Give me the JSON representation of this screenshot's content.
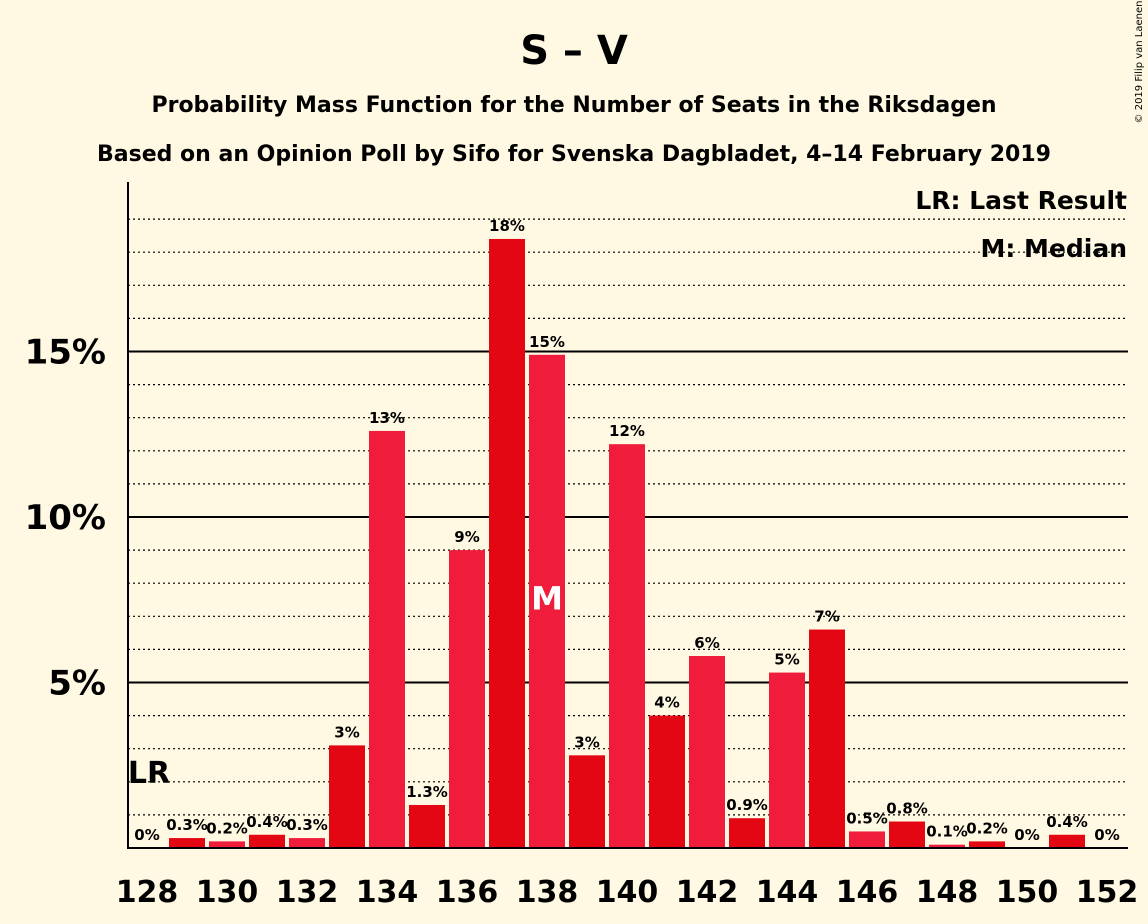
{
  "chart_data": {
    "type": "bar",
    "title": "S – V",
    "subtitle_1": "Probability Mass Function for the Number of Seats in the Riksdagen",
    "subtitle_2": "Based on an Opinion Poll by Sifo for Svenska Dagbladet, 4–14 February 2019",
    "copyright": "© 2019 Filip van Laenen",
    "legend": {
      "placement": "top-right",
      "last_result": "LR: Last Result",
      "median": "M: Median"
    },
    "markers": {
      "last_result_label": "LR",
      "last_result_seat": 128,
      "median_label": "M",
      "median_seat": 138
    },
    "x": [
      128,
      129,
      130,
      131,
      132,
      133,
      134,
      135,
      136,
      137,
      138,
      139,
      140,
      141,
      142,
      143,
      144,
      145,
      146,
      147,
      148,
      149,
      150,
      151,
      152
    ],
    "values": [
      0,
      0.3,
      0.2,
      0.4,
      0.3,
      3.1,
      12.6,
      1.3,
      9.0,
      18.4,
      14.9,
      2.8,
      12.2,
      4.0,
      5.8,
      0.9,
      5.3,
      6.6,
      0.5,
      0.8,
      0.1,
      0.2,
      0,
      0.4,
      0
    ],
    "data_labels": [
      "0%",
      "0.3%",
      "0.2%",
      "0.4%",
      "0.3%",
      "3%",
      "13%",
      "1.3%",
      "9%",
      "18%",
      "15%",
      "3%",
      "12%",
      "4%",
      "6%",
      "0.9%",
      "5%",
      "7%",
      "0.5%",
      "0.8%",
      "0.1%",
      "0.2%",
      "0%",
      "0.4%",
      "0%"
    ],
    "x_tick_labels": [
      "128",
      "130",
      "132",
      "134",
      "136",
      "138",
      "140",
      "142",
      "144",
      "146",
      "148",
      "150",
      "152"
    ],
    "y_tick_labels": [
      "5%",
      "10%",
      "15%"
    ],
    "y_ticks": [
      5,
      10,
      15
    ],
    "ylim": [
      0,
      20
    ],
    "grid": "solid major lines at 5% steps, dotted minor lines at 1% steps",
    "colors": {
      "background": "#fff9e3",
      "bar_dark": "#e30613",
      "bar_light": "#ef1d3b",
      "axis": "#000000"
    }
  }
}
